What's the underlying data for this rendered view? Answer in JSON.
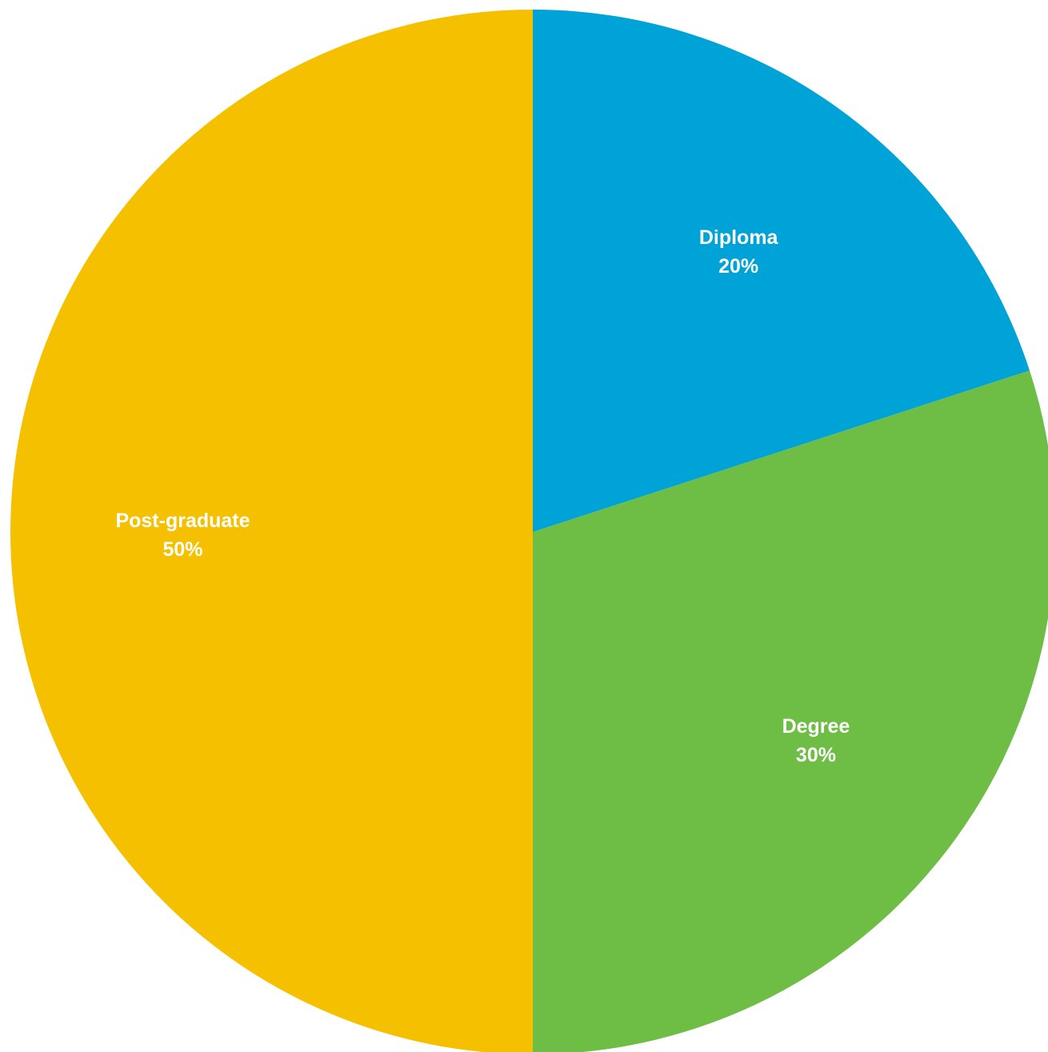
{
  "chart_data": {
    "type": "pie",
    "start": "top",
    "direction": "clockwise",
    "slices": [
      {
        "label": "Diploma",
        "value": 20,
        "value_label": "20%",
        "color": "#00A3D7"
      },
      {
        "label": "Degree",
        "value": 30,
        "value_label": "30%",
        "color": "#6EBD45"
      },
      {
        "label": "Post-graduate",
        "value": 50,
        "value_label": "50%",
        "color": "#F4C000"
      }
    ]
  }
}
